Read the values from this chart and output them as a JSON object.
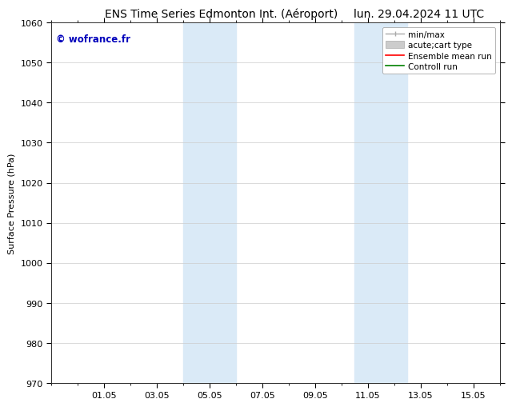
{
  "title_left": "ENS Time Series Edmonton Int. (Aéroport)",
  "title_right": "lun. 29.04.2024 11 UTC",
  "ylabel": "Surface Pressure (hPa)",
  "ylim": [
    970,
    1060
  ],
  "yticks": [
    970,
    980,
    990,
    1000,
    1010,
    1020,
    1030,
    1040,
    1050,
    1060
  ],
  "xlim": [
    0,
    17
  ],
  "xtick_labels": [
    "01.05",
    "03.05",
    "05.05",
    "07.05",
    "09.05",
    "11.05",
    "13.05",
    "15.05"
  ],
  "xtick_positions": [
    2,
    4,
    6,
    8,
    10,
    12,
    14,
    16
  ],
  "shaded_bands": [
    {
      "xstart": 5.0,
      "xend": 6.0,
      "color": "#daeaf7"
    },
    {
      "xstart": 6.0,
      "xend": 7.0,
      "color": "#daeaf7"
    },
    {
      "xstart": 11.5,
      "xend": 12.5,
      "color": "#daeaf7"
    },
    {
      "xstart": 12.5,
      "xend": 13.5,
      "color": "#daeaf7"
    }
  ],
  "watermark": "© wofrance.fr",
  "watermark_color": "#0000bb",
  "background_color": "#ffffff",
  "grid_color": "#cccccc",
  "title_fontsize": 10,
  "axis_fontsize": 8,
  "tick_fontsize": 8,
  "legend_fontsize": 7.5
}
